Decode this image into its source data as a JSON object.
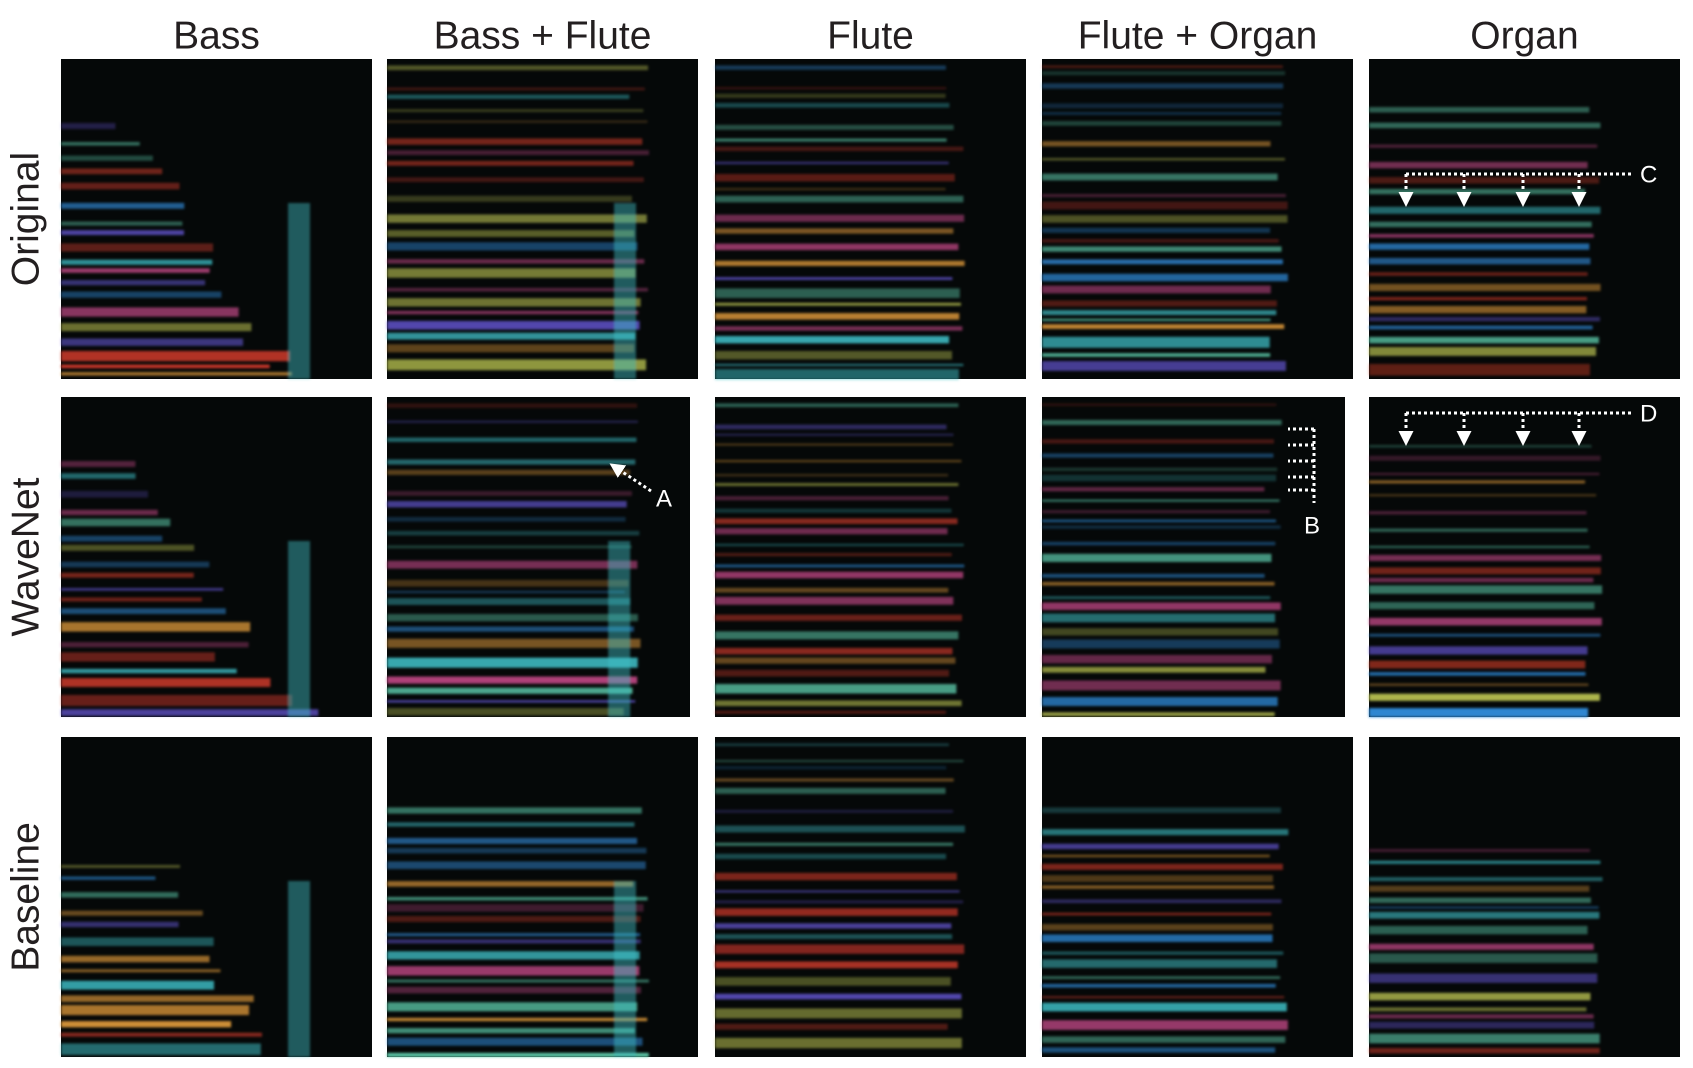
{
  "columns": [
    "Bass",
    "Bass + Flute",
    "Flute",
    "Flute + Organ",
    "Organ"
  ],
  "rows": [
    "Original",
    "WaveNet",
    "Baseline"
  ],
  "annotations": {
    "a": "A",
    "b": "B",
    "c": "C",
    "d": "D"
  }
}
